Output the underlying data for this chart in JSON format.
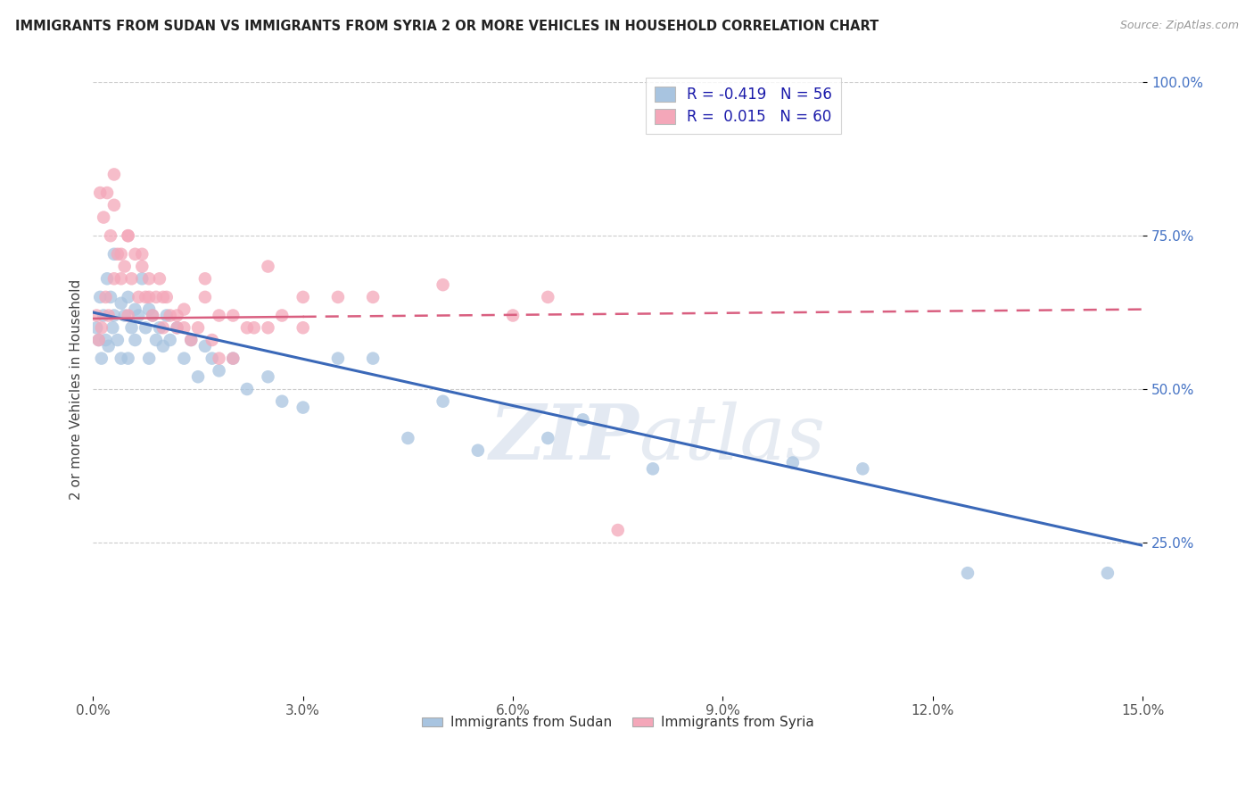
{
  "title": "IMMIGRANTS FROM SUDAN VS IMMIGRANTS FROM SYRIA 2 OR MORE VEHICLES IN HOUSEHOLD CORRELATION CHART",
  "source": "Source: ZipAtlas.com",
  "ylabel": "2 or more Vehicles in Household",
  "xlim": [
    0.0,
    15.0
  ],
  "ylim": [
    0.0,
    100.0
  ],
  "yticks": [
    25.0,
    50.0,
    75.0,
    100.0
  ],
  "ytick_labels": [
    "25.0%",
    "50.0%",
    "75.0%",
    "100.0%"
  ],
  "xticks": [
    0.0,
    3.0,
    6.0,
    9.0,
    12.0,
    15.0
  ],
  "sudan_R": -0.419,
  "sudan_N": 56,
  "syria_R": 0.015,
  "syria_N": 60,
  "sudan_color": "#a8c4e0",
  "syria_color": "#f4a7b9",
  "sudan_line_color": "#3a68b8",
  "syria_line_color": "#d95f80",
  "legend_sudan_label": "Immigrants from Sudan",
  "legend_syria_label": "Immigrants from Syria",
  "background_color": "#ffffff",
  "grid_color": "#cccccc",
  "watermark_zip": "ZIP",
  "watermark_atlas": "atlas",
  "sudan_trend_x0": 0.0,
  "sudan_trend_y0": 62.5,
  "sudan_trend_x1": 15.0,
  "sudan_trend_y1": 24.5,
  "syria_trend_x0": 0.0,
  "syria_trend_y0": 61.5,
  "syria_trend_x1": 15.0,
  "syria_trend_y1": 63.0,
  "syria_solid_end": 3.0,
  "sudan_x": [
    0.05,
    0.08,
    0.1,
    0.12,
    0.15,
    0.18,
    0.2,
    0.22,
    0.25,
    0.28,
    0.3,
    0.3,
    0.35,
    0.4,
    0.4,
    0.45,
    0.5,
    0.5,
    0.55,
    0.6,
    0.6,
    0.65,
    0.7,
    0.75,
    0.8,
    0.8,
    0.85,
    0.9,
    0.95,
    1.0,
    1.05,
    1.1,
    1.2,
    1.3,
    1.4,
    1.5,
    1.6,
    1.7,
    1.8,
    2.0,
    2.2,
    2.5,
    2.7,
    3.0,
    3.5,
    4.0,
    4.5,
    5.0,
    5.5,
    6.5,
    7.0,
    8.0,
    10.0,
    11.0,
    12.5,
    14.5
  ],
  "sudan_y": [
    60,
    58,
    65,
    55,
    62,
    58,
    68,
    57,
    65,
    60,
    62,
    72,
    58,
    64,
    55,
    62,
    65,
    55,
    60,
    63,
    58,
    62,
    68,
    60,
    63,
    55,
    62,
    58,
    60,
    57,
    62,
    58,
    60,
    55,
    58,
    52,
    57,
    55,
    53,
    55,
    50,
    52,
    48,
    47,
    55,
    55,
    42,
    48,
    40,
    42,
    45,
    37,
    38,
    37,
    20,
    20
  ],
  "syria_x": [
    0.05,
    0.08,
    0.1,
    0.12,
    0.15,
    0.18,
    0.2,
    0.22,
    0.25,
    0.3,
    0.3,
    0.35,
    0.4,
    0.45,
    0.5,
    0.5,
    0.55,
    0.6,
    0.65,
    0.7,
    0.75,
    0.8,
    0.85,
    0.9,
    0.95,
    1.0,
    1.05,
    1.1,
    1.2,
    1.3,
    1.4,
    1.5,
    1.6,
    1.7,
    1.8,
    2.0,
    2.2,
    2.5,
    2.7,
    3.0,
    3.5,
    4.0,
    5.0,
    6.0,
    6.5,
    7.5,
    0.3,
    0.5,
    0.7,
    1.0,
    1.3,
    1.6,
    2.0,
    2.5,
    3.0,
    0.4,
    0.8,
    1.2,
    1.8,
    2.3
  ],
  "syria_y": [
    62,
    58,
    82,
    60,
    78,
    65,
    82,
    62,
    75,
    68,
    85,
    72,
    68,
    70,
    75,
    62,
    68,
    72,
    65,
    70,
    65,
    68,
    62,
    65,
    68,
    60,
    65,
    62,
    60,
    63,
    58,
    60,
    65,
    58,
    62,
    55,
    60,
    70,
    62,
    60,
    65,
    65,
    67,
    62,
    65,
    27,
    80,
    75,
    72,
    65,
    60,
    68,
    62,
    60,
    65,
    72,
    65,
    62,
    55,
    60
  ]
}
